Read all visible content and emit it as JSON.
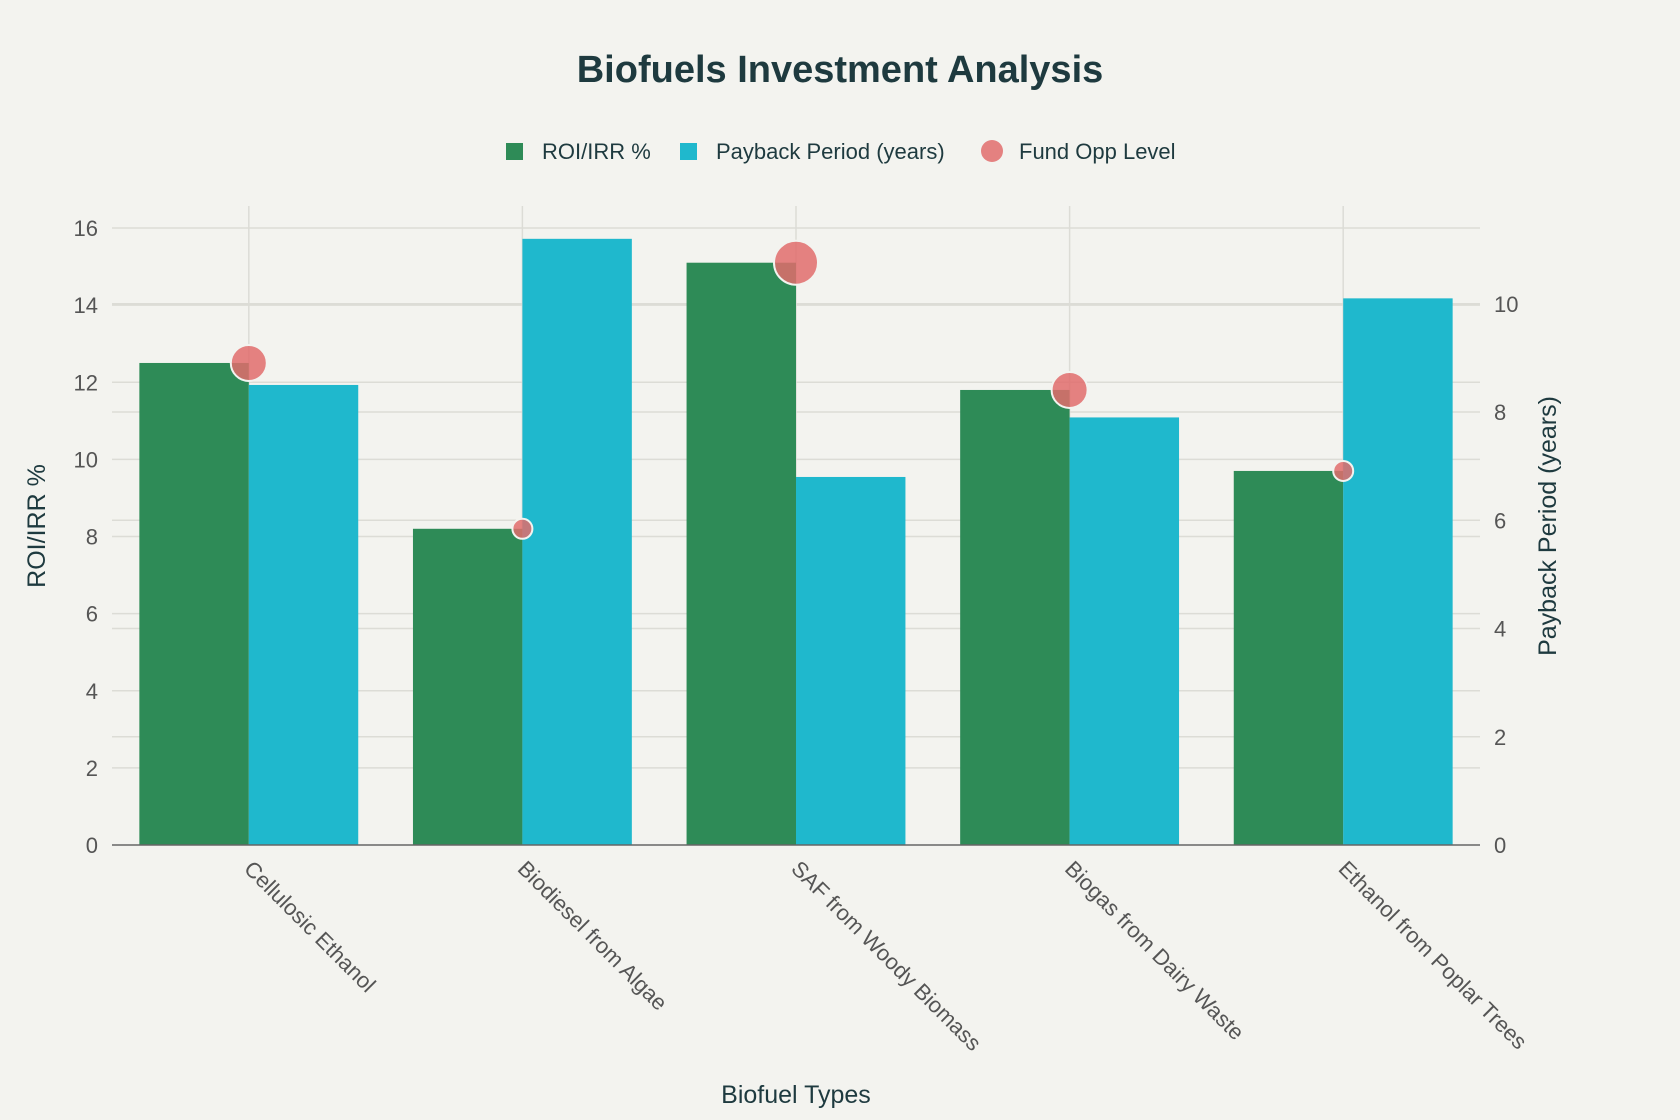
{
  "chart_data": {
    "type": "bar",
    "title": "Biofuels Investment Analysis",
    "xlabel": "Biofuel Types",
    "ylabel": "ROI/IRR %",
    "y2label": "Payback Period (years)",
    "categories": [
      "Cellulosic Ethanol",
      "Biodiesel from Algae",
      "SAF from Woody Biomass",
      "Biogas from Dairy Waste",
      "Ethanol from Poplar Trees"
    ],
    "series": [
      {
        "name": "ROI/IRR %",
        "type": "bar",
        "axis": "left",
        "color": "#2e8b57",
        "values": [
          12.5,
          8.2,
          15.1,
          11.8,
          9.7
        ]
      },
      {
        "name": "Payback Period (years)",
        "type": "bar",
        "axis": "right",
        "color": "#1fb8cd",
        "values": [
          8.5,
          11.2,
          6.8,
          7.9,
          10.1
        ]
      },
      {
        "name": "Fund Opp Level",
        "type": "scatter",
        "axis": "left",
        "color": "#e06c6c",
        "values": [
          12.5,
          8.2,
          15.1,
          11.8,
          9.7
        ],
        "levels": [
          3,
          1,
          4,
          3,
          1
        ]
      }
    ],
    "ylim": [
      0,
      16
    ],
    "y2lim": [
      0,
      11.4
    ],
    "yticks": [
      "0",
      "2",
      "4",
      "6",
      "8",
      "10",
      "12",
      "14",
      "16"
    ],
    "y2ticks": [
      "0",
      "2",
      "4",
      "6",
      "8",
      "10"
    ],
    "legend_position": "top-center",
    "grid": true
  }
}
